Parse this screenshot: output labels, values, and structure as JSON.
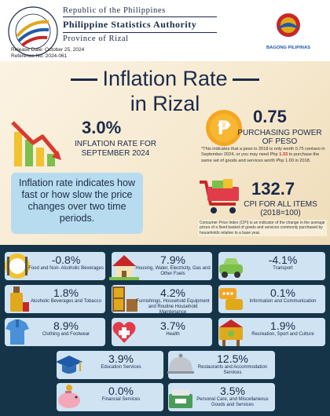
{
  "header": {
    "line1": "Republic of the Philippines",
    "line2": "Philippine Statistics Authority",
    "line3": "Province of Rizal",
    "release_date": "Release Date: October 25, 2024",
    "reference_no": "Reference No. 2024-061",
    "bp_label": "BAGONG PILIPINAS"
  },
  "title": {
    "line1": "Inflation Rate",
    "line2": "in Rizal"
  },
  "inflation": {
    "value": "3.0%",
    "label": "INFLATION RATE FOR SEPTEMBER 2024"
  },
  "purchasing_power": {
    "value": "0.75",
    "label": "PURCHASING POWER OF PESO",
    "note_a": "*This indicates that a peso in 2018 is only worth 0.75 centavo in September 2024, or you may need Php ",
    "note_red": "1.33",
    "note_b": " to purchase the same set of goods and services worth Php 1.00 in 2018."
  },
  "definition": "Inflation rate indicates how fast or how slow the price changes over two time periods.",
  "cpi": {
    "value": "132.7",
    "label1": "CPI FOR ALL ITEMS",
    "label2": "(2018=100)",
    "note": "Consumer Price Index (CPI) is an indicator of the change in the average prices of a fixed basket of goods and services commonly purchased by households relative to a base year."
  },
  "colors": {
    "navy": "#1b2a4a",
    "dark_bg": "#163447",
    "card_bg": "#cfe3f3",
    "accent_red": "#c62828"
  },
  "commodities": [
    {
      "pct": "-0.8%",
      "label": "Food and Non- Alcoholic Beverages",
      "icon": "food-icon"
    },
    {
      "pct": "7.9%",
      "label": "Housing, Water, Electricity, Gas and Other Fuels",
      "icon": "house-icon"
    },
    {
      "pct": "-4.1%",
      "label": "Transport",
      "icon": "car-icon"
    },
    {
      "pct": "1.8%",
      "label": "Alcoholic Beverages and Tobacco",
      "icon": "bottle-icon"
    },
    {
      "pct": "4.2%",
      "label": "Furnishings, Household Equipment and Routine Household Maintenance",
      "icon": "furniture-icon"
    },
    {
      "pct": "0.1%",
      "label": "Information and Communication",
      "icon": "chat-icon"
    },
    {
      "pct": "8.9%",
      "label": "Clothing and Footwear",
      "icon": "shirt-icon"
    },
    {
      "pct": "3.7%",
      "label": "Health",
      "icon": "health-icon"
    },
    {
      "pct": "1.9%",
      "label": "Recreation, Sport and Culture",
      "icon": "recreation-icon"
    },
    {
      "pct": "3.9%",
      "label": "Education Services",
      "icon": "graduation-cap-icon"
    },
    {
      "pct": "12.5%",
      "label": "Restaurants and Accommodation Services",
      "icon": "cloche-icon"
    },
    {
      "pct": "0.0%",
      "label": "Financial Services",
      "icon": "piggy-bank-icon"
    },
    {
      "pct": "3.5%",
      "label": "Personal Care, and Miscellaneous Goods and Services",
      "icon": "personal-care-icon"
    }
  ]
}
